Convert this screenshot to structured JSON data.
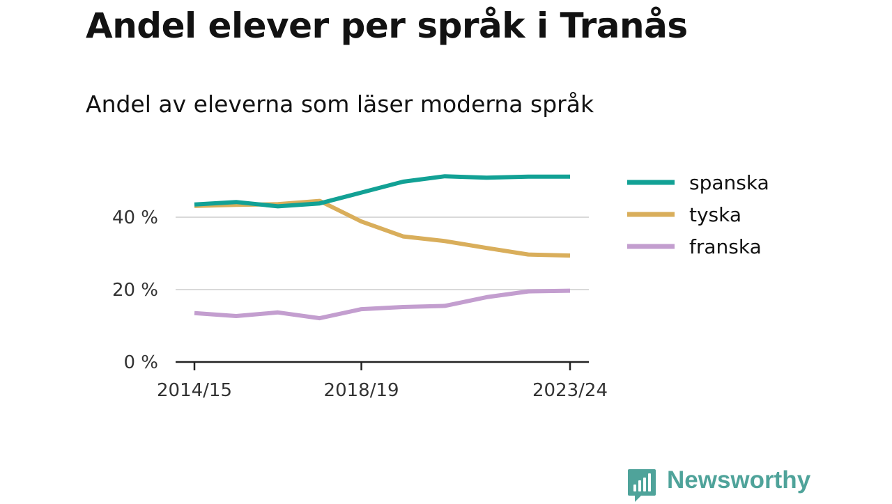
{
  "title": "Andel elever per språk i Tranås",
  "subtitle": "Andel av eleverna som läser moderna språk",
  "brand": {
    "name": "Newsworthy",
    "icon": "newsworthy-logo-icon",
    "color": "#4fa39a"
  },
  "chart_data": {
    "type": "line",
    "title": "Andel elever per språk i Tranås",
    "subtitle": "Andel av eleverna som läser moderna språk",
    "x": [
      "2014/15",
      "2015/16",
      "2016/17",
      "2017/18",
      "2018/19",
      "2019/20",
      "2020/21",
      "2021/22",
      "2022/23",
      "2023/24"
    ],
    "x_tick_labels": [
      "2014/15",
      "2018/19",
      "2023/24"
    ],
    "y_ticks": [
      0,
      20,
      40
    ],
    "y_tick_labels": [
      "0 %",
      "20 %",
      "40 %"
    ],
    "ylim": [
      0,
      54
    ],
    "grid": "horizontal",
    "legend_position": "right",
    "series": [
      {
        "name": "spanska",
        "color": "#12a195",
        "values": [
          43.5,
          44.2,
          43.0,
          43.8,
          46.8,
          49.8,
          51.3,
          50.9,
          51.2,
          51.2
        ]
      },
      {
        "name": "tyska",
        "color": "#d9ae5b",
        "values": [
          43.1,
          43.4,
          43.6,
          44.5,
          38.8,
          34.7,
          33.4,
          31.5,
          29.7,
          29.4
        ]
      },
      {
        "name": "franska",
        "color": "#c39ecf",
        "values": [
          13.5,
          12.7,
          13.7,
          12.1,
          14.6,
          15.2,
          15.5,
          17.9,
          19.5,
          19.7
        ]
      }
    ]
  }
}
